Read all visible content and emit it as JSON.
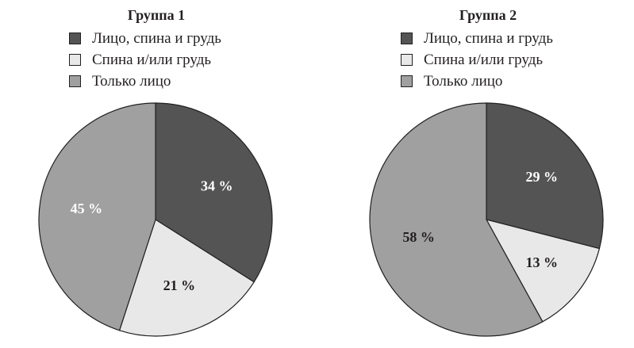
{
  "chart_data": [
    {
      "type": "pie",
      "title": "Группа 1",
      "legend": [
        "Лицо, спина и грудь",
        "Спина и/или грудь",
        "Только лицо"
      ],
      "slices": [
        {
          "label": "Лицо, спина и грудь",
          "value": 34,
          "value_label": "34 %",
          "color": "#545454",
          "text_color": "#ffffff"
        },
        {
          "label": "Спина и/или грудь",
          "value": 21,
          "value_label": "21 %",
          "color": "#e8e8e8",
          "text_color": "#231f20"
        },
        {
          "label": "Только лицо",
          "value": 45,
          "value_label": "45 %",
          "color": "#a0a0a0",
          "text_color": "#ffffff"
        }
      ]
    },
    {
      "type": "pie",
      "title": "Группа 2",
      "legend": [
        "Лицо, спина и грудь",
        "Спина и/или грудь",
        "Только лицо"
      ],
      "slices": [
        {
          "label": "Лицо, спина и грудь",
          "value": 29,
          "value_label": "29 %",
          "color": "#545454",
          "text_color": "#ffffff"
        },
        {
          "label": "Спина и/или грудь",
          "value": 13,
          "value_label": "13 %",
          "color": "#e8e8e8",
          "text_color": "#231f20"
        },
        {
          "label": "Только лицо",
          "value": 58,
          "value_label": "58 %",
          "color": "#a0a0a0",
          "text_color": "#231f20"
        }
      ]
    }
  ]
}
